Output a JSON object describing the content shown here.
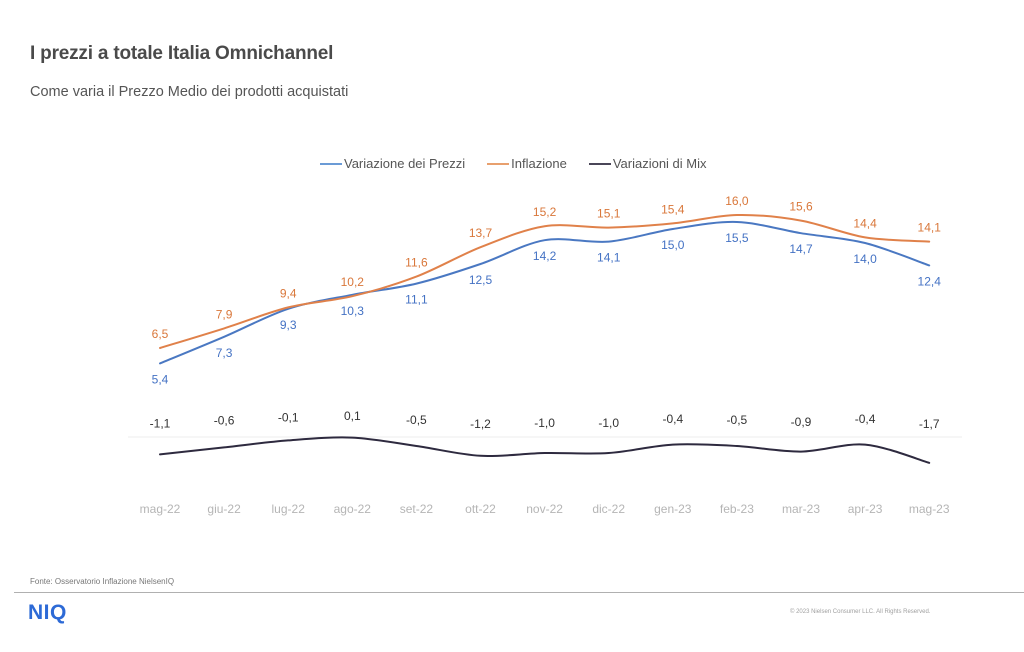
{
  "header": {
    "title": "I prezzi a totale Italia Omnichannel",
    "subtitle": "Come varia il Prezzo  Medio dei prodotti acquistati"
  },
  "chart_data": {
    "type": "line",
    "title": "I prezzi a totale Italia Omnichannel",
    "subtitle": "Come varia il Prezzo Medio dei prodotti acquistati",
    "xlabel": "",
    "ylabel": "",
    "grid": false,
    "legend_position": "top-center",
    "categories": [
      "mag-22",
      "giu-22",
      "lug-22",
      "ago-22",
      "set-22",
      "ott-22",
      "nov-22",
      "dic-22",
      "gen-23",
      "feb-23",
      "mar-23",
      "apr-23",
      "mag-23"
    ],
    "series": [
      {
        "name": "Variazione dei Prezzi",
        "color": "#4472c4",
        "label_position": "below",
        "values": [
          5.4,
          7.3,
          9.3,
          10.3,
          11.1,
          12.5,
          14.2,
          14.1,
          15.0,
          15.5,
          14.7,
          14.0,
          12.4
        ],
        "labels": [
          "5,4",
          "7,3",
          "9,3",
          "10,3",
          "11,1",
          "12,5",
          "14,2",
          "14,1",
          "15,0",
          "15,5",
          "14,7",
          "14,0",
          "12,4"
        ]
      },
      {
        "name": "Inflazione",
        "color": "#e07b39",
        "label_position": "above",
        "values": [
          6.5,
          7.9,
          9.4,
          10.2,
          11.6,
          13.7,
          15.2,
          15.1,
          15.4,
          16.0,
          15.6,
          14.4,
          14.1
        ],
        "labels": [
          "6,5",
          "7,9",
          "9,4",
          "10,2",
          "11,6",
          "13,7",
          "15,2",
          "15,1",
          "15,4",
          "16,0",
          "15,6",
          "14,4",
          "14,1"
        ]
      },
      {
        "name": "Variazioni di Mix",
        "color": "#2e2a3f",
        "label_position": "above",
        "values": [
          -1.1,
          -0.6,
          -0.1,
          0.1,
          -0.5,
          -1.2,
          -1.0,
          -1.0,
          -0.4,
          -0.5,
          -0.9,
          -0.4,
          -1.7
        ],
        "labels": [
          "-1,1",
          "-0,6",
          "-0,1",
          "0,1",
          "-0,5",
          "-1,2",
          "-1,0",
          "-1,0",
          "-0,4",
          "-0,5",
          "-0,9",
          "-0,4",
          "-1,7"
        ]
      }
    ],
    "ylim": [
      -2,
      17
    ],
    "zero_line": true
  },
  "footer": {
    "source": "Fonte: Osservatorio Inflazione NielsenIQ",
    "logo": "NIQ",
    "copyright": "© 2023 Nielsen Consumer LLC. All Rights Reserved."
  }
}
